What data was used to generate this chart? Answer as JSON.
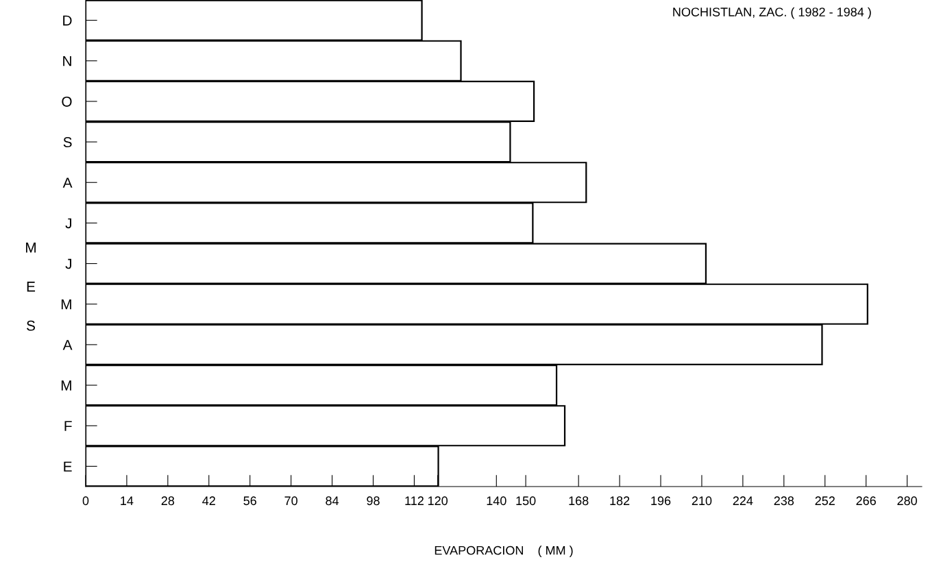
{
  "chart_data": {
    "type": "bar",
    "orientation": "horizontal",
    "title": "NOCHISTLAN, ZAC. ( 1982 - 1984 )",
    "xlabel": "EVAPORACION    ( MM )",
    "ylabel": "MES",
    "categories": [
      "D",
      "N",
      "O",
      "S",
      "A",
      "J",
      "J",
      "M",
      "A",
      "M",
      "F",
      "E"
    ],
    "values": [
      114.6,
      127.9,
      152.8,
      144.7,
      170.6,
      152.4,
      211.4,
      266.5,
      251,
      160.5,
      163.3,
      120.2
    ],
    "color": "#ffffff",
    "xlim": [
      0,
      285
    ],
    "xticks": [
      0,
      14,
      28,
      42,
      56,
      70,
      84,
      98,
      112,
      120,
      140,
      150,
      168,
      182,
      196,
      210,
      224,
      238,
      252,
      266,
      280
    ],
    "grid": false,
    "legend": false
  }
}
